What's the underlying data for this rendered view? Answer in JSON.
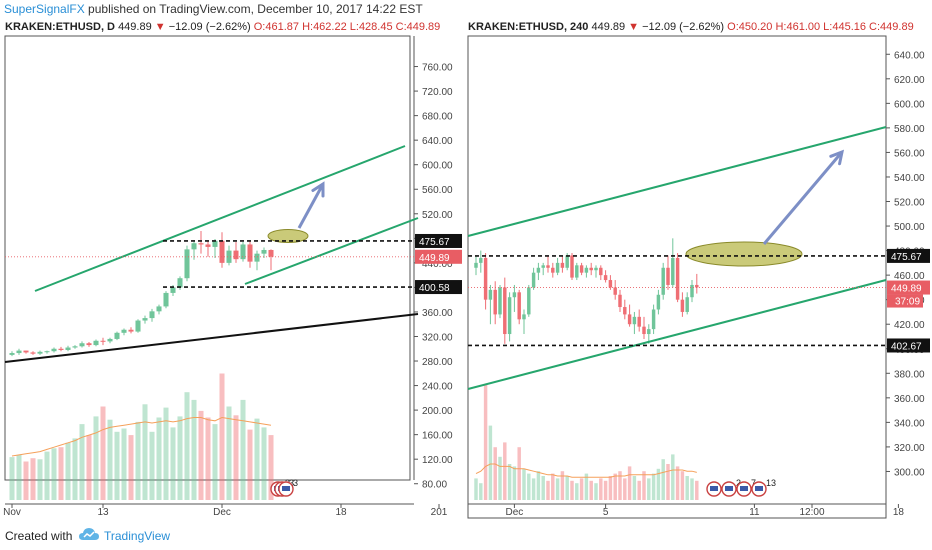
{
  "header": {
    "publisher": "SuperSignalFX",
    "published_text": " published on TradingView.com, December 10, 2017 14:22 EST"
  },
  "footer": {
    "created_with": "Created with",
    "brand": "TradingView"
  },
  "colors": {
    "up": "#70c59a",
    "down": "#ef6e74",
    "channel": "#26a66d",
    "trendline": "#111111",
    "arrow": "#7d8fc6",
    "ellipse": "#b8b84c",
    "ma": "#f5a05a",
    "last_price_bg": "#e85d64",
    "level_bg": "#111111"
  },
  "chart_data": [
    {
      "type": "candlestick",
      "symbol": "KRAKEN:ETHUSD",
      "timeframe": "D",
      "change_arrow": "▼",
      "ohlc_text": {
        "last": "449.89",
        "change": "−12.09 (−2.62%)",
        "O": "461.87",
        "H": "462.22",
        "L": "428.45",
        "C": "449.89"
      },
      "ylim": [
        60,
        800
      ],
      "yticks": [
        "80.00",
        "120.00",
        "160.00",
        "200.00",
        "240.00",
        "280.00",
        "320.00",
        "360.00",
        "400.00",
        "440.00",
        "480.00",
        "520.00",
        "560.00",
        "600.00",
        "640.00",
        "680.00",
        "720.00",
        "760.00"
      ],
      "xticks": [
        {
          "label": "Nov",
          "i": 0
        },
        {
          "label": "13",
          "i": 13
        },
        {
          "label": "Dec",
          "i": 30
        },
        {
          "label": "18",
          "i": 47
        },
        {
          "label": "201",
          "i": 61
        }
      ],
      "candles": [
        [
          290,
          296,
          288,
          293
        ],
        [
          293,
          300,
          290,
          297
        ],
        [
          297,
          297,
          292,
          294
        ],
        [
          294,
          296,
          290,
          292
        ],
        [
          292,
          297,
          290,
          295
        ],
        [
          295,
          297,
          292,
          296
        ],
        [
          296,
          302,
          294,
          300
        ],
        [
          300,
          303,
          296,
          298
        ],
        [
          298,
          305,
          296,
          302
        ],
        [
          302,
          306,
          300,
          304
        ],
        [
          304,
          312,
          302,
          309
        ],
        [
          309,
          311,
          303,
          306
        ],
        [
          306,
          315,
          304,
          313
        ],
        [
          313,
          318,
          306,
          312
        ],
        [
          312,
          318,
          309,
          316
        ],
        [
          316,
          328,
          314,
          326
        ],
        [
          326,
          333,
          322,
          331
        ],
        [
          331,
          335,
          325,
          328
        ],
        [
          328,
          348,
          326,
          346
        ],
        [
          346,
          354,
          341,
          350
        ],
        [
          350,
          365,
          344,
          361
        ],
        [
          361,
          372,
          356,
          369
        ],
        [
          369,
          394,
          366,
          391
        ],
        [
          391,
          404,
          386,
          400
        ],
        [
          400,
          418,
          396,
          415
        ],
        [
          415,
          468,
          410,
          462
        ],
        [
          462,
          477,
          445,
          472
        ],
        [
          472,
          492,
          455,
          470
        ],
        [
          470,
          476,
          450,
          466
        ],
        [
          466,
          479,
          448,
          476
        ],
        [
          476,
          490,
          432,
          440
        ],
        [
          440,
          468,
          436,
          460
        ],
        [
          460,
          474,
          440,
          446
        ],
        [
          446,
          474,
          442,
          470
        ],
        [
          470,
          476,
          432,
          442
        ],
        [
          442,
          460,
          428,
          455
        ],
        [
          455,
          465,
          448,
          461
        ],
        [
          461,
          462,
          428,
          450
        ]
      ],
      "volume": [
        78,
        82,
        70,
        76,
        74,
        88,
        94,
        96,
        104,
        112,
        138,
        118,
        152,
        170,
        146,
        124,
        130,
        118,
        142,
        174,
        124,
        150,
        168,
        132,
        152,
        196,
        182,
        162,
        150,
        138,
        230,
        170,
        154,
        182,
        128,
        148,
        132,
        118
      ],
      "volume_ma": [
        80,
        82,
        84,
        86,
        88,
        92,
        96,
        100,
        104,
        108,
        114,
        118,
        122,
        128,
        132,
        134,
        136,
        138,
        140,
        142,
        140,
        142,
        144,
        142,
        144,
        148,
        150,
        150,
        146,
        144,
        150,
        148,
        146,
        144,
        142,
        140,
        138,
        136
      ],
      "last_price": "449.89",
      "levels": [
        {
          "label": "475.67",
          "value": 475.67,
          "style": "dashed"
        },
        {
          "label": "400.58",
          "value": 400.58,
          "style": "dashed"
        }
      ],
      "event_markers": [
        "3",
        "3",
        "3"
      ]
    },
    {
      "type": "candlestick",
      "symbol": "KRAKEN:ETHUSD",
      "timeframe": "240",
      "change_arrow": "▼",
      "ohlc_text": {
        "last": "449.89",
        "change": "−12.09 (−2.62%)",
        "O": "450.20",
        "H": "461.00",
        "L": "445.16",
        "C": "449.89"
      },
      "ylim": [
        280,
        650
      ],
      "yticks": [
        "300.00",
        "320.00",
        "340.00",
        "360.00",
        "380.00",
        "400.00",
        "420.00",
        "440.00",
        "460.00",
        "480.00",
        "500.00",
        "520.00",
        "540.00",
        "560.00",
        "580.00",
        "600.00",
        "620.00",
        "640.00"
      ],
      "xticks": [
        {
          "label": "Dec",
          "i": 8
        },
        {
          "label": "5",
          "i": 27
        },
        {
          "label": "11",
          "i": 58
        },
        {
          "label": "12:00",
          "i": 70
        },
        {
          "label": "18",
          "i": 88
        }
      ],
      "candles": [
        [
          466,
          476,
          460,
          470
        ],
        [
          470,
          480,
          462,
          474
        ],
        [
          474,
          478,
          432,
          440
        ],
        [
          440,
          452,
          420,
          448
        ],
        [
          448,
          455,
          420,
          428
        ],
        [
          428,
          452,
          425,
          450
        ],
        [
          450,
          458,
          404,
          412
        ],
        [
          412,
          446,
          406,
          442
        ],
        [
          442,
          452,
          430,
          446
        ],
        [
          446,
          448,
          420,
          424
        ],
        [
          424,
          432,
          412,
          428
        ],
        [
          428,
          452,
          426,
          450
        ],
        [
          450,
          466,
          448,
          462
        ],
        [
          462,
          470,
          456,
          466
        ],
        [
          466,
          470,
          460,
          468
        ],
        [
          468,
          476,
          462,
          466
        ],
        [
          466,
          470,
          458,
          462
        ],
        [
          462,
          474,
          460,
          470
        ],
        [
          470,
          476,
          462,
          466
        ],
        [
          466,
          478,
          464,
          476
        ],
        [
          476,
          478,
          456,
          458
        ],
        [
          458,
          470,
          456,
          468
        ],
        [
          468,
          470,
          460,
          462
        ],
        [
          462,
          468,
          458,
          466
        ],
        [
          466,
          470,
          460,
          464
        ],
        [
          464,
          468,
          458,
          466
        ],
        [
          466,
          468,
          456,
          460
        ],
        [
          460,
          464,
          454,
          456
        ],
        [
          456,
          460,
          448,
          450
        ],
        [
          450,
          456,
          440,
          444
        ],
        [
          444,
          448,
          430,
          434
        ],
        [
          434,
          440,
          424,
          428
        ],
        [
          428,
          436,
          418,
          420
        ],
        [
          420,
          430,
          412,
          426
        ],
        [
          426,
          432,
          414,
          418
        ],
        [
          418,
          426,
          408,
          412
        ],
        [
          412,
          420,
          404,
          416
        ],
        [
          416,
          436,
          412,
          432
        ],
        [
          432,
          448,
          428,
          444
        ],
        [
          444,
          470,
          440,
          466
        ],
        [
          466,
          476,
          448,
          452
        ],
        [
          452,
          490,
          450,
          474
        ],
        [
          474,
          478,
          438,
          440
        ],
        [
          440,
          446,
          426,
          430
        ],
        [
          430,
          446,
          428,
          442
        ],
        [
          442,
          456,
          438,
          452
        ],
        [
          452,
          461,
          445,
          450
        ]
      ],
      "volume": [
        18,
        14,
        96,
        62,
        44,
        36,
        48,
        30,
        28,
        44,
        26,
        22,
        18,
        24,
        20,
        16,
        22,
        18,
        24,
        20,
        16,
        14,
        18,
        22,
        16,
        14,
        18,
        16,
        20,
        22,
        24,
        18,
        28,
        20,
        16,
        24,
        18,
        22,
        26,
        34,
        30,
        38,
        28,
        24,
        20,
        18,
        16
      ],
      "volume_ma": [
        22,
        24,
        28,
        30,
        30,
        28,
        28,
        28,
        26,
        26,
        26,
        25,
        24,
        23,
        22,
        21,
        21,
        20,
        20,
        20,
        19,
        19,
        19,
        19,
        19,
        19,
        19,
        19,
        19,
        20,
        20,
        20,
        21,
        21,
        21,
        21,
        21,
        21,
        22,
        23,
        24,
        25,
        25,
        25,
        24,
        24,
        23
      ],
      "last_price": "449.89",
      "countdown": "37:09",
      "levels": [
        {
          "label": "475.67",
          "value": 475.67,
          "style": "dashed"
        },
        {
          "label": "402.67",
          "value": 402.67,
          "style": "dashed"
        }
      ],
      "event_markers": [
        "",
        "2",
        "7",
        "13"
      ]
    }
  ]
}
